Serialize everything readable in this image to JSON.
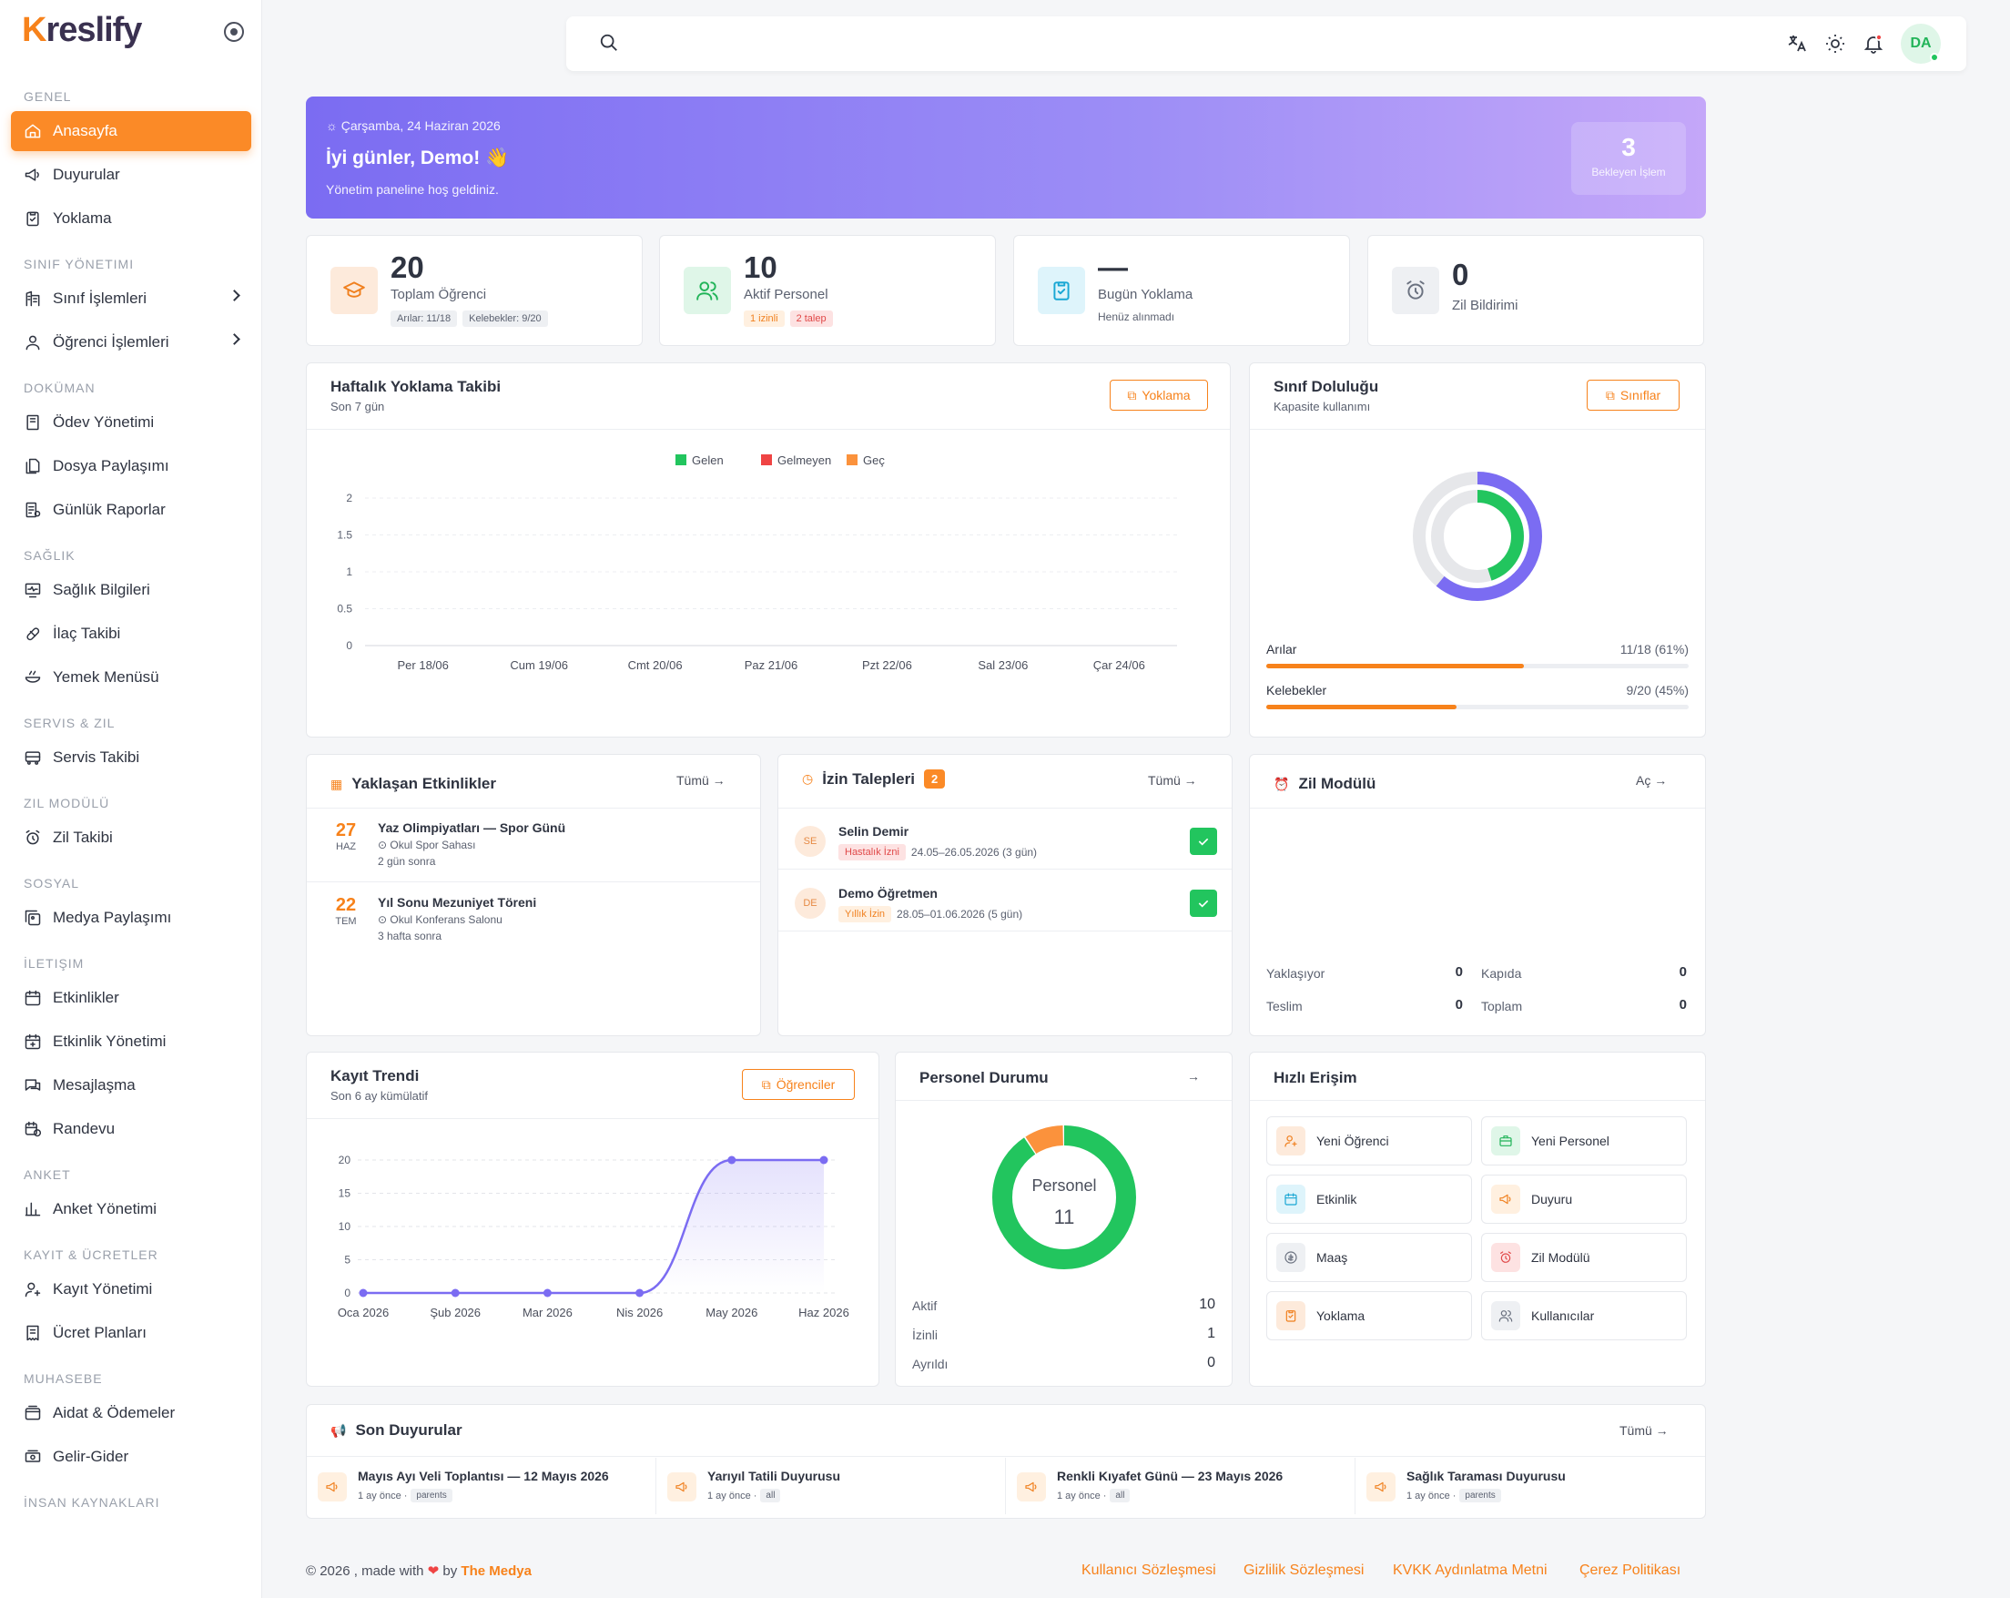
{
  "brand": {
    "logo_first": "K",
    "logo_rest": "reslify"
  },
  "sidebar": {
    "sections": [
      {
        "title": "GENEL",
        "items": [
          {
            "label": "Anasayfa",
            "icon": "home-icon",
            "active": true
          },
          {
            "label": "Duyurular",
            "icon": "megaphone-icon"
          },
          {
            "label": "Yoklama",
            "icon": "clipboard-check-icon"
          }
        ]
      },
      {
        "title": "SINIF YÖNETIMI",
        "items": [
          {
            "label": "Sınıf İşlemleri",
            "icon": "building-icon",
            "chevron": true
          },
          {
            "label": "Öğrenci İşlemleri",
            "icon": "user-icon",
            "chevron": true
          }
        ]
      },
      {
        "title": "DOKÜMAN",
        "items": [
          {
            "label": "Ödev Yönetimi",
            "icon": "book-icon"
          },
          {
            "label": "Dosya Paylaşımı",
            "icon": "files-icon"
          },
          {
            "label": "Günlük Raporlar",
            "icon": "report-icon"
          }
        ]
      },
      {
        "title": "SAĞLIK",
        "items": [
          {
            "label": "Sağlık Bilgileri",
            "icon": "monitor-heart-icon"
          },
          {
            "label": "İlaç Takibi",
            "icon": "pill-icon"
          },
          {
            "label": "Yemek Menüsü",
            "icon": "bowl-icon"
          }
        ]
      },
      {
        "title": "SERVIS & ZIL",
        "items": [
          {
            "label": "Servis Takibi",
            "icon": "bus-icon"
          }
        ]
      },
      {
        "title": "ZIL MODÜLÜ",
        "items": [
          {
            "label": "Zil Takibi",
            "icon": "alarm-icon"
          }
        ]
      },
      {
        "title": "SOSYAL",
        "items": [
          {
            "label": "Medya Paylaşımı",
            "icon": "media-icon"
          }
        ]
      },
      {
        "title": "İLETIŞIM",
        "items": [
          {
            "label": "Etkinlikler",
            "icon": "calendar-icon"
          },
          {
            "label": "Etkinlik Yönetimi",
            "icon": "calendar-plus-icon"
          },
          {
            "label": "Mesajlaşma",
            "icon": "message-icon"
          },
          {
            "label": "Randevu",
            "icon": "calendar-clock-icon"
          }
        ]
      },
      {
        "title": "ANKET",
        "items": [
          {
            "label": "Anket Yönetimi",
            "icon": "chart-bars-icon"
          }
        ]
      },
      {
        "title": "KAYIT & ÜCRETLER",
        "items": [
          {
            "label": "Kayıt Yönetimi",
            "icon": "user-plus-icon"
          },
          {
            "label": "Ücret Planları",
            "icon": "receipt-icon"
          }
        ]
      },
      {
        "title": "MUHASEBE",
        "items": [
          {
            "label": "Aidat & Ödemeler",
            "icon": "wallet-icon"
          },
          {
            "label": "Gelir-Gider",
            "icon": "cash-icon"
          }
        ]
      },
      {
        "title": "İNSAN KAYNAKLARI",
        "items": []
      }
    ]
  },
  "topbar": {
    "search_placeholder": "",
    "avatar": "DA",
    "icons": [
      "translate-icon",
      "sun-icon",
      "bell-icon"
    ]
  },
  "banner": {
    "date": "Çarşamba, 24 Haziran 2026",
    "greeting": "İyi günler, Demo! 👋",
    "subtitle": "Yönetim paneline hoş geldiniz.",
    "pending_count": "3",
    "pending_label": "Bekleyen İşlem"
  },
  "stats": [
    {
      "value": "20",
      "label": "Toplam Öğrenci",
      "chips": [
        {
          "text": "Arılar: 11/18",
          "style": "gray"
        },
        {
          "text": "Kelebekler: 9/20",
          "style": "gray"
        }
      ],
      "color": "#fdeadb",
      "icon_color": "#f0801f",
      "icon": "graduation-cap-icon"
    },
    {
      "value": "10",
      "label": "Aktif Personel",
      "chips": [
        {
          "text": "1 izinli",
          "style": "or"
        },
        {
          "text": "2 talep",
          "style": "red"
        }
      ],
      "color": "#dff6e8",
      "icon_color": "#22b459",
      "icon": "users-icon"
    },
    {
      "value": "—",
      "label": "Bugün Yoklama",
      "hint": "Henüz alınmadı",
      "color": "#def4fb",
      "icon_color": "#1aa7d4",
      "icon": "clipboard-check-icon"
    },
    {
      "value": "0",
      "label": "Zil Bildirimi",
      "color": "#eef0f3",
      "icon_color": "#6b7280",
      "icon": "alarm-icon"
    }
  ],
  "attendance": {
    "title": "Haftalık Yoklama Takibi",
    "subtitle": "Son 7 gün",
    "button": "Yoklama"
  },
  "class_fill": {
    "title": "Sınıf Doluluğu",
    "subtitle": "Kapasite kullanımı",
    "button": "Sınıflar",
    "rows": [
      {
        "name": "Arılar",
        "value": "11/18 (61%)",
        "percent": 61
      },
      {
        "name": "Kelebekler",
        "value": "9/20 (45%)",
        "percent": 45
      }
    ]
  },
  "events": {
    "title": "Yaklaşan Etkinlikler",
    "link": "Tümü →",
    "items": [
      {
        "day": "27",
        "month": "HAZ",
        "title": "Yaz Olimpiyatları — Spor Günü",
        "place": "Okul Spor Sahası",
        "when": "2 gün sonra"
      },
      {
        "day": "22",
        "month": "TEM",
        "title": "Yıl Sonu Mezuniyet Töreni",
        "place": "Okul Konferans Salonu",
        "when": "3 hafta sonra"
      }
    ]
  },
  "leaves": {
    "title": "İzin Talepleri",
    "count": "2",
    "link": "Tümü →",
    "items": [
      {
        "initials": "SE",
        "name": "Selin Demir",
        "type": "Hastalık İzni",
        "type_style": "red",
        "range": "24.05–26.05.2026 (3 gün)"
      },
      {
        "initials": "DE",
        "name": "Demo Öğretmen",
        "type": "Yıllık İzin",
        "type_style": "or",
        "range": "28.05–01.06.2026 (5 gün)"
      }
    ]
  },
  "bell_module": {
    "title": "Zil Modülü",
    "link": "Aç →",
    "stats": [
      {
        "label": "Yaklaşıyor",
        "value": "0"
      },
      {
        "label": "Kapıda",
        "value": "0"
      },
      {
        "label": "Teslim",
        "value": "0"
      },
      {
        "label": "Toplam",
        "value": "0"
      }
    ]
  },
  "enrollment": {
    "title": "Kayıt Trendi",
    "subtitle": "Son 6 ay kümülatif",
    "button": "Öğrenciler"
  },
  "staff": {
    "title": "Personel Durumu",
    "link": "→",
    "center_label": "Personel",
    "center_value": "11",
    "rows": [
      {
        "label": "Aktif",
        "value": "10"
      },
      {
        "label": "İzinli",
        "value": "1"
      },
      {
        "label": "Ayrıldı",
        "value": "0"
      }
    ]
  },
  "quick": {
    "title": "Hızlı Erişim",
    "items": [
      {
        "label": "Yeni Öğrenci",
        "bg": "#fdeadb",
        "fg": "#f0801f",
        "icon": "user-plus-icon"
      },
      {
        "label": "Yeni Personel",
        "bg": "#dff6e8",
        "fg": "#22b459",
        "icon": "briefcase-icon"
      },
      {
        "label": "Etkinlik",
        "bg": "#def4fb",
        "fg": "#1aa7d4",
        "icon": "calendar-icon"
      },
      {
        "label": "Duyuru",
        "bg": "#fff0e0",
        "fg": "#f0801f",
        "icon": "megaphone-icon"
      },
      {
        "label": "Maaş",
        "bg": "#eef0f3",
        "fg": "#6b7280",
        "icon": "coin-icon"
      },
      {
        "label": "Zil Modülü",
        "bg": "#fde2e2",
        "fg": "#e04848",
        "icon": "alarm-icon"
      },
      {
        "label": "Yoklama",
        "bg": "#fdeadb",
        "fg": "#f0801f",
        "icon": "clipboard-check-icon"
      },
      {
        "label": "Kullanıcılar",
        "bg": "#eef0f3",
        "fg": "#6b7280",
        "icon": "users-icon"
      }
    ]
  },
  "announcements": {
    "title": "Son Duyurular",
    "link": "Tümü →",
    "items": [
      {
        "title": "Mayıs Ayı Veli Toplantısı — 12 Mayıs 2026",
        "time": "1 ay önce ·",
        "tag": "parents"
      },
      {
        "title": "Yarıyıl Tatili Duyurusu",
        "time": "1 ay önce ·",
        "tag": "all"
      },
      {
        "title": "Renkli Kıyafet Günü — 23 Mayıs 2026",
        "time": "1 ay önce ·",
        "tag": "all"
      },
      {
        "title": "Sağlık Taraması Duyurusu",
        "time": "1 ay önce ·",
        "tag": "parents"
      }
    ]
  },
  "footer": {
    "copyright": "© 2026 , made with",
    "by": "by",
    "brand": "The Medya",
    "links": [
      "Kullanıcı Sözleşmesi",
      "Gizlilik Sözleşmesi",
      "KVKK Aydınlatma Metni",
      "Çerez Politikası"
    ]
  },
  "chart_data": [
    {
      "type": "bar",
      "title": "",
      "categories": [
        "Per 18/06",
        "Cum 19/06",
        "Cmt 20/06",
        "Paz 21/06",
        "Pzt 22/06",
        "Sal 23/06",
        "Çar 24/06"
      ],
      "series": [
        {
          "name": "Gelen",
          "color": "#22c55e",
          "values": [
            0,
            0,
            0,
            0,
            0,
            0,
            0
          ]
        },
        {
          "name": "Gelmeyen",
          "color": "#ef4444",
          "values": [
            0,
            0,
            0,
            0,
            0,
            0,
            0
          ]
        },
        {
          "name": "Geç",
          "color": "#fb923c",
          "values": [
            0,
            0,
            0,
            0,
            0,
            0,
            0
          ]
        }
      ],
      "yticks": [
        "2",
        "1.5",
        "1",
        "0.5",
        "0"
      ],
      "ylim": [
        0,
        2
      ],
      "legend": "top-center"
    },
    {
      "type": "pie",
      "title": "",
      "categories": [
        "Arılar",
        "Kelebekler"
      ],
      "values": [
        61,
        45
      ],
      "colors": [
        "#7b6cf2",
        "#22c55e"
      ]
    },
    {
      "type": "line",
      "title": "",
      "x": [
        "Oca 2026",
        "Şub 2026",
        "Mar 2026",
        "Nis 2026",
        "May 2026",
        "Haz 2026"
      ],
      "series": [
        {
          "name": "",
          "color": "#7b6cf2",
          "values": [
            0,
            0,
            0,
            0,
            20,
            20
          ]
        }
      ],
      "yticks": [
        "20",
        "15",
        "10",
        "5",
        "0"
      ],
      "ylim": [
        0,
        20
      ]
    },
    {
      "type": "pie",
      "title": "",
      "categories": [
        "Aktif",
        "İzinli",
        "Ayrıldı"
      ],
      "values": [
        10,
        1,
        0
      ],
      "colors": [
        "#22c55e",
        "#fb923c",
        "#9ca3af"
      ]
    }
  ]
}
